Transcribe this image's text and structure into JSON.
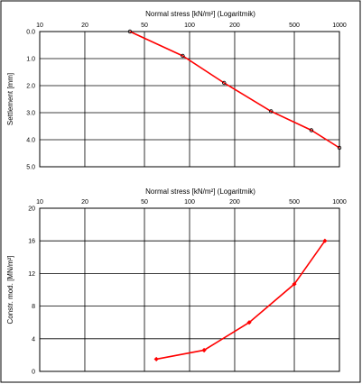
{
  "chart_data": [
    {
      "type": "line",
      "title": "",
      "xlabel": "Normal stress [kN/m²]  (Logaritmik)",
      "ylabel": "Settlement [mm]",
      "xscale": "log",
      "xlim": [
        10,
        1000
      ],
      "ylim": [
        0,
        5
      ],
      "y_inverted": true,
      "x_axis_position": "top",
      "grid": true,
      "x_tick_labels": [
        "10",
        "20",
        "50",
        "100",
        "200",
        "500",
        "1000"
      ],
      "x_tick_values": [
        10,
        20,
        50,
        100,
        200,
        500,
        1000
      ],
      "y_tick_labels": [
        "0.0",
        "1.0",
        "2.0",
        "3.0",
        "4.0",
        "5.0"
      ],
      "y_tick_values": [
        0,
        1,
        2,
        3,
        4,
        5
      ],
      "colors": {
        "series": "#ff0000",
        "markers": "#000000",
        "grid": "#000000"
      },
      "series": [
        {
          "x": [
            40,
            90,
            170,
            350,
            650,
            1000
          ],
          "y": [
            0.0,
            0.9,
            1.9,
            2.95,
            3.65,
            4.3
          ]
        }
      ]
    },
    {
      "type": "line",
      "title": "",
      "xlabel": "Normal stress [kN/m²]  (Logaritmik)",
      "ylabel": "Constr. mod. [MN/m²]",
      "xscale": "log",
      "xlim": [
        10,
        1000
      ],
      "ylim": [
        0,
        20
      ],
      "x_axis_position": "top",
      "grid": true,
      "x_tick_labels": [
        "10",
        "20",
        "50",
        "100",
        "200",
        "500",
        "1000"
      ],
      "x_tick_values": [
        10,
        20,
        50,
        100,
        200,
        500,
        1000
      ],
      "y_tick_labels": [
        "0",
        "4",
        "8",
        "12",
        "16",
        "20"
      ],
      "y_tick_values": [
        0,
        4,
        8,
        12,
        16,
        20
      ],
      "colors": {
        "series": "#ff0000",
        "markers": "#ff0000",
        "grid": "#000000"
      },
      "series": [
        {
          "x": [
            60,
            125,
            250,
            500,
            800
          ],
          "y": [
            1.5,
            2.6,
            6.0,
            10.7,
            16.0
          ]
        }
      ]
    }
  ]
}
